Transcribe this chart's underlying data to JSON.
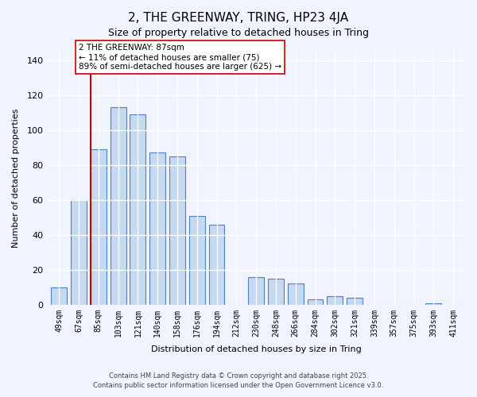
{
  "title1": "2, THE GREENWAY, TRING, HP23 4JA",
  "title2": "Size of property relative to detached houses in Tring",
  "xlabel": "Distribution of detached houses by size in Tring",
  "ylabel": "Number of detached properties",
  "bar_labels": [
    "49sqm",
    "67sqm",
    "85sqm",
    "103sqm",
    "121sqm",
    "140sqm",
    "158sqm",
    "176sqm",
    "194sqm",
    "212sqm",
    "230sqm",
    "248sqm",
    "266sqm",
    "284sqm",
    "302sqm",
    "321sqm",
    "339sqm",
    "357sqm",
    "375sqm",
    "393sqm",
    "411sqm"
  ],
  "bar_values": [
    10,
    60,
    89,
    113,
    109,
    87,
    85,
    51,
    46,
    0,
    16,
    15,
    12,
    3,
    5,
    4,
    0,
    0,
    0,
    1,
    0
  ],
  "bar_color": "#c5d9f1",
  "bar_edge_color": "#4f81bd",
  "vline_x": 2,
  "vline_color": "#cc0000",
  "annotation_title": "2 THE GREENWAY: 87sqm",
  "annotation_line1": "← 11% of detached houses are smaller (75)",
  "annotation_line2": "89% of semi-detached houses are larger (625) →",
  "annotation_box_color": "#ffffff",
  "annotation_box_edge": "#cc0000",
  "ylim": [
    0,
    145
  ],
  "yticks": [
    0,
    20,
    40,
    60,
    80,
    100,
    120,
    140
  ],
  "footer1": "Contains HM Land Registry data © Crown copyright and database right 2025.",
  "footer2": "Contains public sector information licensed under the Open Government Licence v3.0.",
  "bg_color": "#f0f4ff",
  "grid_color": "#ffffff"
}
